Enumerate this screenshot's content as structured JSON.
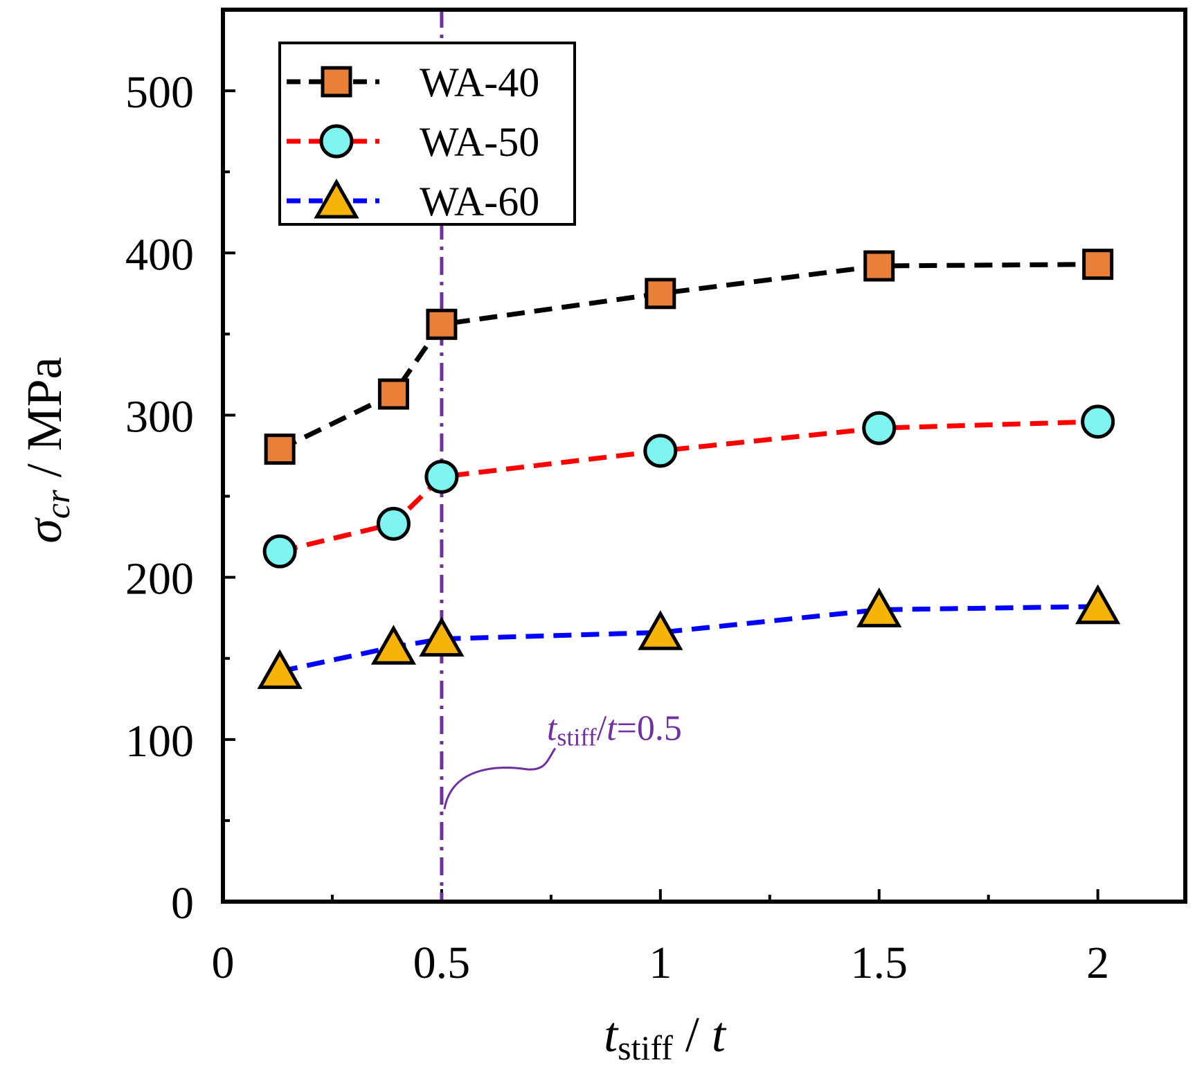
{
  "chart_data": {
    "type": "line",
    "title": "",
    "xlabel": {
      "main": "t",
      "sub": "stiff",
      "rest": " / ",
      "tail": "t"
    },
    "ylabel": {
      "sigma": "σ",
      "sub": "cr",
      "rest": " / MPa"
    },
    "xlim": [
      0,
      2.2
    ],
    "ylim": [
      0,
      550
    ],
    "x_ticks": [
      0,
      0.5,
      1,
      1.5,
      2
    ],
    "x_tick_labels": [
      "0",
      "0.5",
      "1",
      "1.5",
      "2"
    ],
    "x_minor_ticks": [
      0.25,
      0.75,
      1.25,
      1.75
    ],
    "y_ticks": [
      0,
      100,
      200,
      300,
      400,
      500
    ],
    "y_tick_labels": [
      "0",
      "100",
      "200",
      "300",
      "400",
      "500"
    ],
    "y_minor_ticks": [
      50,
      150,
      250,
      350,
      450
    ],
    "legend_position": "top-left",
    "series": [
      {
        "name": "WA-40",
        "marker": "square",
        "line_color": "#000000",
        "marker_color": "#E8803A",
        "x": [
          0.13,
          0.39,
          0.5,
          1.0,
          1.5,
          2.0
        ],
        "y": [
          279,
          313,
          356,
          375,
          392,
          393
        ]
      },
      {
        "name": "WA-50",
        "marker": "circle",
        "line_color": "#FF0000",
        "marker_color": "#7EF5F0",
        "x": [
          0.13,
          0.39,
          0.5,
          1.0,
          1.5,
          2.0
        ],
        "y": [
          216,
          233,
          262,
          278,
          292,
          296
        ]
      },
      {
        "name": "WA-60",
        "marker": "triangle",
        "line_color": "#0000FF",
        "marker_color": "#F7B30A",
        "x": [
          0.13,
          0.39,
          0.5,
          1.0,
          1.5,
          2.0
        ],
        "y": [
          142,
          157,
          162,
          166,
          180,
          182
        ]
      }
    ],
    "reference_line": {
      "x": 0.5,
      "color": "#7030A0",
      "style": "dash-dot"
    },
    "annotations": [
      {
        "text_main": "t",
        "text_sub": "stiff",
        "text_rest": "/",
        "text_italic2": "t",
        "text_value": "=0.5",
        "color": "#7030A0",
        "anchor_x": 0.5,
        "anchor_y": 57
      }
    ]
  }
}
